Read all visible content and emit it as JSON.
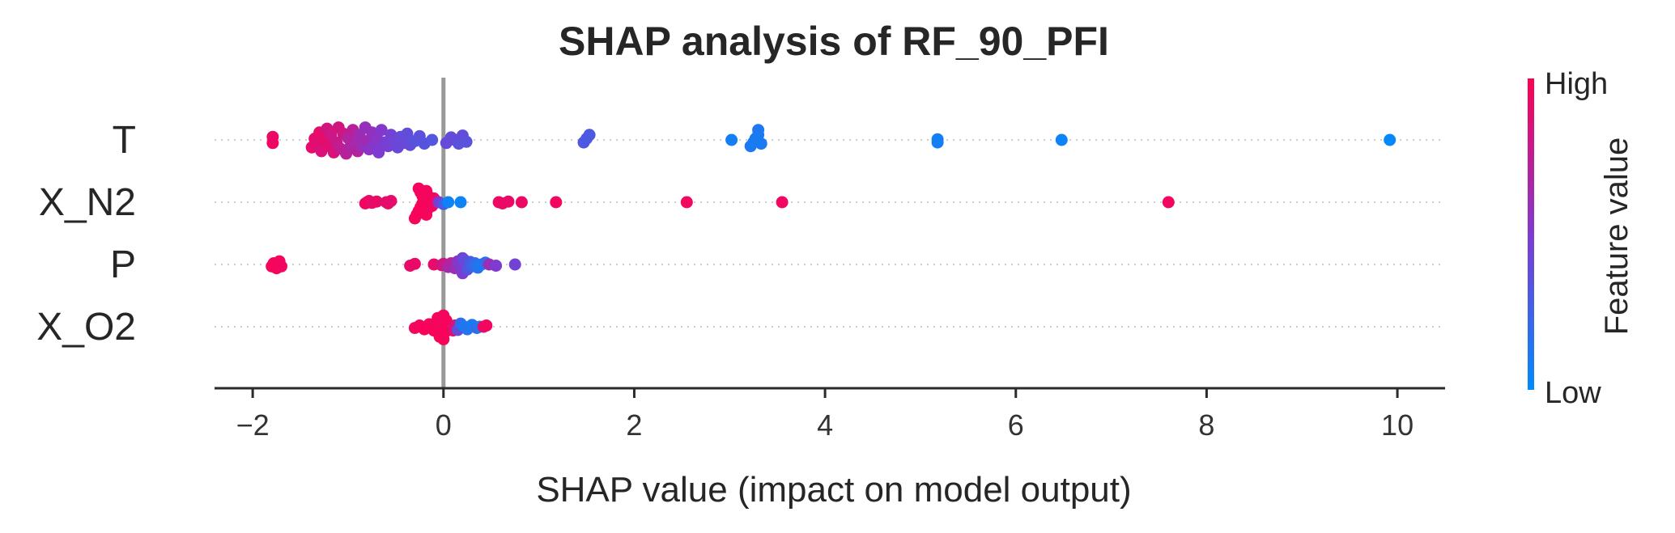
{
  "chart_data": {
    "type": "scatter",
    "title": "SHAP analysis of RF_90_PFI",
    "xlabel": "SHAP value (impact on model output)",
    "xlim": [
      -2.4,
      10.5
    ],
    "xticks": [
      -2,
      0,
      2,
      4,
      6,
      8,
      10
    ],
    "xtick_labels": [
      "−2",
      "0",
      "2",
      "4",
      "6",
      "8",
      "10"
    ],
    "features": [
      "T",
      "X_N2",
      "P",
      "X_O2"
    ],
    "colorbar": {
      "title": "Feature value",
      "high_label": "High",
      "low_label": "Low",
      "high_color": "#ff0052",
      "mid_color": "#7f3ad0",
      "low_color": "#008bfb"
    },
    "series": [
      {
        "name": "T",
        "points": [
          [
            -1.79,
            0.95,
            0.05
          ],
          [
            -1.79,
            0.92,
            -0.05
          ],
          [
            -1.38,
            0.9,
            0.12
          ],
          [
            -1.35,
            0.9,
            -0.02
          ],
          [
            -1.32,
            0.88,
            0.08
          ],
          [
            -1.3,
            0.9,
            -0.12
          ],
          [
            -1.28,
            0.85,
            0.18
          ],
          [
            -1.25,
            0.9,
            0.0
          ],
          [
            -1.22,
            0.82,
            -0.18
          ],
          [
            -1.2,
            0.88,
            0.1
          ],
          [
            -1.18,
            0.8,
            -0.08
          ],
          [
            -1.15,
            0.85,
            0.2
          ],
          [
            -1.12,
            0.78,
            0.04
          ],
          [
            -1.1,
            0.82,
            -0.2
          ],
          [
            -1.08,
            0.75,
            0.14
          ],
          [
            -1.05,
            0.8,
            -0.1
          ],
          [
            -1.02,
            0.72,
            0.22
          ],
          [
            -1.0,
            0.7,
            -0.03
          ],
          [
            -0.98,
            0.68,
            0.12
          ],
          [
            -0.95,
            0.72,
            -0.16
          ],
          [
            -0.92,
            0.65,
            0.06
          ],
          [
            -0.9,
            0.7,
            0.18
          ],
          [
            -0.88,
            0.62,
            -0.08
          ],
          [
            -0.85,
            0.6,
            0.1
          ],
          [
            -0.82,
            0.58,
            -0.2
          ],
          [
            -0.8,
            0.62,
            0.02
          ],
          [
            -0.78,
            0.55,
            0.15
          ],
          [
            -0.75,
            0.58,
            -0.12
          ],
          [
            -0.72,
            0.52,
            0.08
          ],
          [
            -0.7,
            0.55,
            -0.04
          ],
          [
            -0.68,
            0.5,
            0.2
          ],
          [
            -0.65,
            0.52,
            -0.16
          ],
          [
            -0.62,
            0.48,
            0.04
          ],
          [
            -0.58,
            0.46,
            0.1
          ],
          [
            -0.55,
            0.45,
            -0.08
          ],
          [
            -0.52,
            0.44,
            0.03
          ],
          [
            -0.48,
            0.42,
            0.12
          ],
          [
            -0.45,
            0.4,
            -0.05
          ],
          [
            -0.42,
            0.41,
            0.05
          ],
          [
            -0.38,
            0.38,
            -0.1
          ],
          [
            -0.35,
            0.4,
            0.08
          ],
          [
            -0.3,
            0.35,
            0.02
          ],
          [
            -0.25,
            0.36,
            -0.06
          ],
          [
            -0.2,
            0.34,
            0.06
          ],
          [
            -0.12,
            0.33,
            0.0
          ],
          [
            0.03,
            0.4,
            0.05
          ],
          [
            0.08,
            0.38,
            -0.04
          ],
          [
            0.12,
            0.4,
            0.0
          ],
          [
            0.16,
            0.36,
            0.06
          ],
          [
            0.2,
            0.38,
            -0.07
          ],
          [
            0.24,
            0.35,
            0.03
          ],
          [
            1.47,
            0.32,
            0.04
          ],
          [
            1.5,
            0.3,
            -0.02
          ],
          [
            1.53,
            0.3,
            -0.08
          ],
          [
            3.02,
            0.08,
            0.0
          ],
          [
            3.22,
            0.12,
            0.1
          ],
          [
            3.25,
            0.1,
            0.04
          ],
          [
            3.27,
            0.1,
            -0.02
          ],
          [
            3.3,
            0.1,
            -0.08
          ],
          [
            3.3,
            0.12,
            -0.16
          ],
          [
            3.33,
            0.1,
            0.06
          ],
          [
            5.18,
            0.08,
            0.04
          ],
          [
            5.18,
            0.08,
            -0.01
          ],
          [
            6.48,
            0.05,
            0.0
          ],
          [
            9.92,
            0.02,
            0.0
          ]
        ]
      },
      {
        "name": "X_N2",
        "points": [
          [
            -0.82,
            0.92,
            0.02
          ],
          [
            -0.78,
            0.9,
            -0.02
          ],
          [
            -0.8,
            0.95,
            0.0
          ],
          [
            -0.75,
            0.9,
            0.01
          ],
          [
            -0.7,
            0.92,
            -0.01
          ],
          [
            -0.6,
            0.88,
            0.0
          ],
          [
            -0.58,
            0.92,
            0.02
          ],
          [
            -0.55,
            0.9,
            -0.02
          ],
          [
            -0.3,
            0.96,
            0.26
          ],
          [
            -0.28,
            0.96,
            0.2
          ],
          [
            -0.26,
            0.97,
            0.14
          ],
          [
            -0.24,
            0.96,
            0.08
          ],
          [
            -0.22,
            0.97,
            0.02
          ],
          [
            -0.2,
            0.96,
            -0.04
          ],
          [
            -0.22,
            0.97,
            -0.1
          ],
          [
            -0.24,
            0.96,
            -0.16
          ],
          [
            -0.26,
            0.95,
            -0.22
          ],
          [
            -0.18,
            0.96,
            0.2
          ],
          [
            -0.16,
            0.96,
            0.1
          ],
          [
            -0.14,
            0.97,
            0.0
          ],
          [
            -0.16,
            0.96,
            -0.1
          ],
          [
            -0.18,
            0.96,
            -0.18
          ],
          [
            -0.12,
            0.95,
            0.06
          ],
          [
            -0.1,
            0.95,
            -0.06
          ],
          [
            -0.05,
            0.5,
            0.0
          ],
          [
            0.0,
            0.3,
            0.03
          ],
          [
            0.05,
            0.05,
            0.0
          ],
          [
            0.18,
            0.05,
            0.0
          ],
          [
            0.58,
            0.93,
            0.0
          ],
          [
            0.62,
            0.93,
            0.02
          ],
          [
            0.68,
            0.92,
            -0.01
          ],
          [
            0.82,
            0.93,
            0.0
          ],
          [
            1.18,
            0.95,
            0.0
          ],
          [
            2.55,
            0.95,
            0.0
          ],
          [
            3.55,
            0.95,
            0.0
          ],
          [
            7.6,
            0.95,
            0.0
          ]
        ]
      },
      {
        "name": "P",
        "points": [
          [
            -1.8,
            0.96,
            0.03
          ],
          [
            -1.78,
            0.96,
            -0.02
          ],
          [
            -1.75,
            0.96,
            0.06
          ],
          [
            -1.73,
            0.96,
            0.0
          ],
          [
            -1.72,
            0.96,
            -0.05
          ],
          [
            -1.7,
            0.95,
            0.03
          ],
          [
            -0.35,
            0.9,
            0.02
          ],
          [
            -0.3,
            0.92,
            -0.01
          ],
          [
            -0.1,
            0.9,
            0.0
          ],
          [
            -0.02,
            0.85,
            0.01
          ],
          [
            0.0,
            0.8,
            -0.01
          ],
          [
            0.05,
            0.65,
            0.04
          ],
          [
            0.08,
            0.7,
            -0.02
          ],
          [
            0.12,
            0.6,
            0.06
          ],
          [
            0.15,
            0.55,
            -0.05
          ],
          [
            0.18,
            0.5,
            0.02
          ],
          [
            0.2,
            0.45,
            -0.1
          ],
          [
            0.2,
            0.5,
            0.14
          ],
          [
            0.22,
            0.4,
            -0.07
          ],
          [
            0.25,
            0.35,
            0.08
          ],
          [
            0.28,
            0.3,
            -0.04
          ],
          [
            0.3,
            0.25,
            0.03
          ],
          [
            0.33,
            0.2,
            -0.02
          ],
          [
            0.36,
            0.15,
            0.05
          ],
          [
            0.4,
            0.1,
            0.0
          ],
          [
            0.44,
            0.2,
            -0.03
          ],
          [
            0.48,
            0.6,
            0.0
          ],
          [
            0.55,
            0.5,
            0.02
          ],
          [
            0.75,
            0.45,
            0.0
          ]
        ]
      },
      {
        "name": "X_O2",
        "points": [
          [
            -0.3,
            0.95,
            0.02
          ],
          [
            -0.25,
            0.96,
            -0.02
          ],
          [
            -0.2,
            0.97,
            0.04
          ],
          [
            -0.15,
            0.96,
            -0.04
          ],
          [
            -0.1,
            0.97,
            0.06
          ],
          [
            -0.05,
            0.96,
            -0.06
          ],
          [
            -0.02,
            0.97,
            0.12
          ],
          [
            0.0,
            0.97,
            0.2
          ],
          [
            0.02,
            0.97,
            0.08
          ],
          [
            0.03,
            0.97,
            -0.1
          ],
          [
            0.0,
            0.96,
            -0.18
          ],
          [
            -0.04,
            0.97,
            0.16
          ],
          [
            -0.06,
            0.96,
            -0.14
          ],
          [
            0.1,
            0.9,
            0.06
          ],
          [
            0.12,
            0.85,
            -0.02
          ],
          [
            0.15,
            0.4,
            0.05
          ],
          [
            0.18,
            0.2,
            -0.05
          ],
          [
            0.22,
            0.1,
            0.0
          ],
          [
            0.25,
            0.15,
            0.04
          ],
          [
            0.3,
            0.1,
            -0.03
          ],
          [
            0.35,
            0.2,
            0.02
          ],
          [
            0.38,
            0.15,
            0.0
          ],
          [
            0.42,
            0.9,
            0.0
          ],
          [
            0.45,
            0.95,
            -0.02
          ]
        ]
      }
    ]
  }
}
